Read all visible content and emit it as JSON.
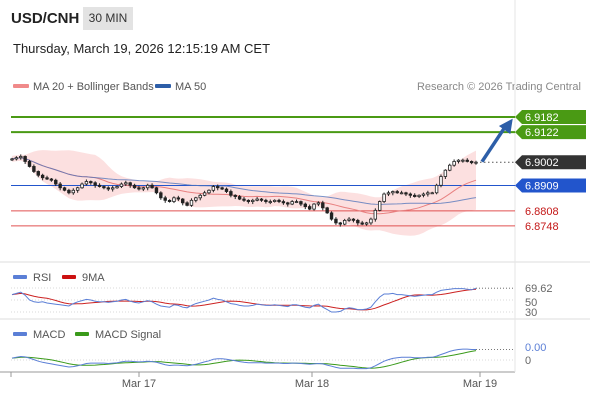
{
  "header": {
    "symbol": "USD/CNH",
    "timeframe": "30 MIN",
    "timestamp": "Thursday, March 19, 2026 12:15:19 AM CET"
  },
  "credit": "Research © 2026 Trading Central",
  "colors": {
    "resistance_line": "#4a9a14",
    "pivot_line": "#2255cc",
    "support_line": "#e05050",
    "arrow": "#2d5ea8",
    "bollinger_fill": "#fcdada",
    "ma20": "#e88080",
    "ma50": "#5577bb",
    "rsi": "#5b7fd6",
    "rsi_9ma": "#cc2222",
    "macd": "#5b7fd6",
    "macd_signal": "#3a9a1a",
    "candle_body": "#222222"
  },
  "legend": {
    "main": [
      {
        "label": "MA 20 + Bollinger Bands",
        "color": "#f08a8a"
      },
      {
        "label": "MA 50",
        "color": "#2d5ea8"
      }
    ],
    "rsi": [
      {
        "label": "RSI",
        "color": "#5b7fd6"
      },
      {
        "label": "9MA",
        "color": "#cc1111"
      }
    ],
    "macd": [
      {
        "label": "MACD",
        "color": "#5b7fd6"
      },
      {
        "label": "MACD Signal",
        "color": "#3a9a1a"
      }
    ]
  },
  "chart_data": [
    {
      "type": "candlestick",
      "title": "",
      "ylim": [
        6.862,
        6.925
      ],
      "levels": [
        {
          "value": 6.9182,
          "label": "6.9182",
          "kind": "resistance"
        },
        {
          "value": 6.9122,
          "label": "6.9122",
          "kind": "resistance"
        },
        {
          "value": 6.9002,
          "label": "6.9002",
          "kind": "current"
        },
        {
          "value": 6.8909,
          "label": "6.8909",
          "kind": "pivot"
        },
        {
          "value": 6.8808,
          "label": "6.8808",
          "kind": "support"
        },
        {
          "value": 6.8748,
          "label": "6.8748",
          "kind": "support"
        }
      ],
      "x_ticks": [
        "Mar 17",
        "Mar 18",
        "Mar 19"
      ],
      "close": [
        6.9015,
        6.902,
        6.9025,
        6.9005,
        6.8985,
        6.8965,
        6.895,
        6.894,
        6.8935,
        6.893,
        6.8915,
        6.89,
        6.889,
        6.888,
        6.889,
        6.89,
        6.8915,
        6.8925,
        6.892,
        6.891,
        6.8905,
        6.89,
        6.8895,
        6.89,
        6.8905,
        6.8915,
        6.892,
        6.891,
        6.89,
        6.8895,
        6.89,
        6.891,
        6.89,
        6.888,
        6.886,
        6.885,
        6.8845,
        6.886,
        6.8855,
        6.884,
        6.883,
        6.885,
        6.886,
        6.887,
        6.888,
        6.889,
        6.8905,
        6.89,
        6.8895,
        6.8885,
        6.887,
        6.8865,
        6.8855,
        6.885,
        6.8845,
        6.885,
        6.8855,
        6.885,
        6.8845,
        6.8845,
        6.885,
        6.8845,
        6.884,
        6.8835,
        6.8845,
        6.8845,
        6.8835,
        6.8825,
        6.8815,
        6.8835,
        6.884,
        6.882,
        6.88,
        6.8775,
        6.876,
        6.8755,
        6.877,
        6.8775,
        6.877,
        6.876,
        6.8755,
        6.876,
        6.8775,
        6.881,
        6.8845,
        6.8875,
        6.888,
        6.8885,
        6.888,
        6.888,
        6.8875,
        6.887,
        6.8865,
        6.887,
        6.8875,
        6.888,
        6.888,
        6.891,
        6.8945,
        6.897,
        6.899,
        6.9005,
        6.901,
        6.901,
        6.9005,
        6.9,
        6.9002
      ],
      "ma20": {
        "label": "MA 20 + Bollinger Bands"
      },
      "ma50": {
        "label": "MA 50"
      }
    },
    {
      "type": "line",
      "name": "RSI",
      "ylim": [
        30,
        70
      ],
      "tick_labels": [
        "69.62",
        "50",
        "30"
      ],
      "series": [
        {
          "name": "RSI"
        },
        {
          "name": "9MA"
        }
      ],
      "values": [
        59,
        61,
        63,
        58,
        50,
        47,
        46,
        47,
        45,
        44,
        43,
        42,
        41,
        40,
        44,
        47,
        49,
        51,
        50,
        48,
        47,
        47,
        46,
        47,
        48,
        50,
        51,
        48,
        46,
        45,
        47,
        49,
        47,
        43,
        40,
        39,
        38,
        42,
        41,
        38,
        37,
        41,
        44,
        46,
        48,
        50,
        53,
        51,
        50,
        47,
        44,
        43,
        41,
        40,
        40,
        41,
        43,
        42,
        41,
        41,
        42,
        41,
        40,
        39,
        42,
        42,
        40,
        38,
        37,
        41,
        43,
        38,
        34,
        30,
        30,
        31,
        35,
        37,
        36,
        34,
        34,
        35,
        38,
        47,
        55,
        60,
        60,
        61,
        59,
        59,
        58,
        57,
        56,
        57,
        58,
        59,
        59,
        63,
        66,
        67,
        68,
        69,
        69,
        69,
        68,
        67,
        69.62
      ]
    },
    {
      "type": "line",
      "name": "MACD",
      "tick_labels": [
        "0.00",
        "0"
      ],
      "series": [
        {
          "name": "MACD"
        },
        {
          "name": "MACD Signal"
        }
      ],
      "values": [
        0.0005,
        0.0007,
        0.0009,
        0.0008,
        0.0005,
        0.0001,
        -0.0003,
        -0.0006,
        -0.0008,
        -0.001,
        -0.0012,
        -0.0014,
        -0.0016,
        -0.0018,
        -0.0017,
        -0.0015,
        -0.0012,
        -0.0009,
        -0.0008,
        -0.0008,
        -0.0008,
        -0.0008,
        -0.0009,
        -0.0008,
        -0.0007,
        -0.0005,
        -0.0003,
        -0.0003,
        -0.0004,
        -0.0005,
        -0.0004,
        -0.0003,
        -0.0004,
        -0.0006,
        -0.0009,
        -0.0012,
        -0.0014,
        -0.0013,
        -0.0013,
        -0.0014,
        -0.0015,
        -0.0013,
        -0.0011,
        -0.0008,
        -0.0005,
        -0.0002,
        0.0002,
        0.0003,
        0.0003,
        0.0002,
        0.0,
        -0.0002,
        -0.0004,
        -0.0006,
        -0.0007,
        -0.0007,
        -0.0007,
        -0.0007,
        -0.0008,
        -0.0008,
        -0.0008,
        -0.0008,
        -0.0009,
        -0.0009,
        -0.0008,
        -0.0008,
        -0.0009,
        -0.001,
        -0.0011,
        -0.001,
        -0.0009,
        -0.001,
        -0.0013,
        -0.0016,
        -0.0019,
        -0.0021,
        -0.0021,
        -0.0021,
        -0.0021,
        -0.0022,
        -0.0022,
        -0.0022,
        -0.002,
        -0.0015,
        -0.0009,
        -0.0003,
        0.0001,
        0.0004,
        0.0006,
        0.0007,
        0.0007,
        0.0007,
        0.0006,
        0.0006,
        0.0006,
        0.0007,
        0.0007,
        0.001,
        0.0014,
        0.0018,
        0.0022,
        0.0025,
        0.0027,
        0.0028,
        0.0028,
        0.0027,
        0.0027
      ]
    }
  ]
}
